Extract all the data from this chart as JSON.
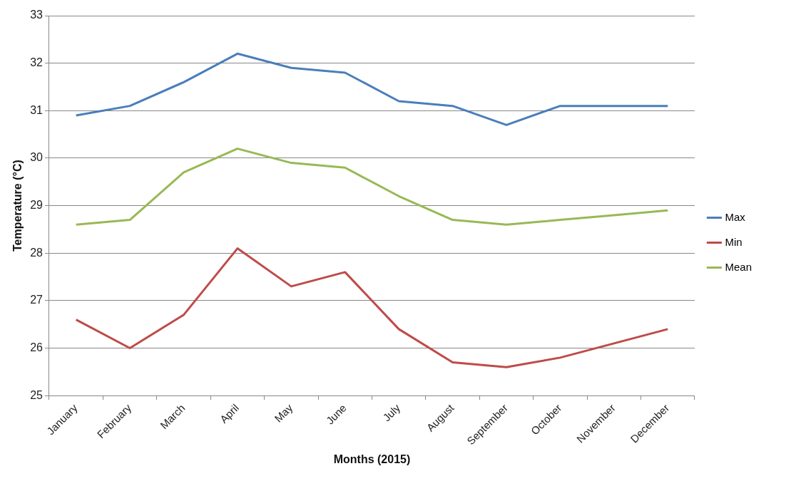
{
  "chart_data": {
    "type": "line",
    "xlabel": "Months (2015)",
    "ylabel": "Temperature (°C)",
    "categories": [
      "January",
      "February",
      "March",
      "April",
      "May",
      "June",
      "July",
      "August",
      "September",
      "October",
      "November",
      "December"
    ],
    "series": [
      {
        "name": "Max",
        "color": "#4a7ebb",
        "values": [
          30.9,
          31.1,
          31.6,
          32.2,
          31.9,
          31.8,
          31.2,
          31.1,
          30.7,
          31.1,
          31.1,
          31.1
        ]
      },
      {
        "name": "Min",
        "color": "#be4b48",
        "values": [
          26.6,
          26.0,
          26.7,
          28.1,
          27.3,
          27.6,
          26.4,
          25.7,
          25.6,
          25.8,
          26.1,
          26.4
        ]
      },
      {
        "name": "Mean",
        "color": "#98b954",
        "values": [
          28.6,
          28.7,
          29.7,
          30.2,
          29.9,
          29.8,
          29.2,
          28.7,
          28.6,
          28.7,
          28.8,
          28.9
        ]
      }
    ],
    "ylim": [
      25,
      33
    ],
    "yticks": [
      25,
      26,
      27,
      28,
      29,
      30,
      31,
      32,
      33
    ],
    "grid": "y",
    "legend": "right",
    "marker": "none",
    "line_style": "solid"
  }
}
